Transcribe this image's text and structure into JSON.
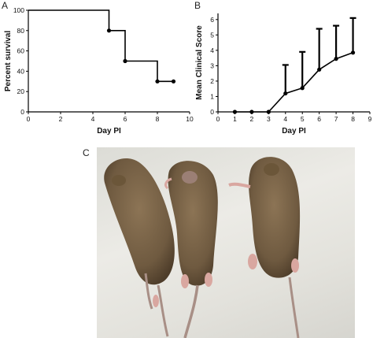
{
  "panels": {
    "a": "A",
    "b": "B",
    "c": "C"
  },
  "chart_data": [
    {
      "type": "line",
      "subtype": "step",
      "title": "",
      "xlabel": "Day PI",
      "ylabel": "Percent survival",
      "xlim": [
        0,
        10
      ],
      "ylim": [
        0,
        100
      ],
      "x_ticks": [
        0,
        2,
        4,
        6,
        8,
        10
      ],
      "y_ticks": [
        0,
        20,
        40,
        60,
        80,
        100
      ],
      "step_x": [
        0,
        5,
        5,
        6,
        6,
        8,
        8,
        9
      ],
      "step_y": [
        100,
        100,
        80,
        80,
        50,
        50,
        30,
        30
      ],
      "censored_x": [
        5,
        6,
        8,
        9
      ],
      "censored_y": [
        80,
        50,
        30,
        30
      ]
    },
    {
      "type": "line",
      "title": "",
      "xlabel": "Day PI",
      "ylabel": "Mean Clinical Score",
      "xlim": [
        0,
        9
      ],
      "ylim": [
        0,
        6.4
      ],
      "x_ticks": [
        0,
        1,
        2,
        3,
        4,
        5,
        6,
        7,
        8,
        9
      ],
      "y_ticks": [
        0,
        1,
        2,
        3,
        4,
        5,
        6
      ],
      "x": [
        1,
        2,
        3,
        4,
        5,
        6,
        7,
        8
      ],
      "y": [
        0,
        0,
        0,
        1.2,
        1.55,
        2.75,
        3.45,
        3.85
      ],
      "error_upper": [
        0,
        0,
        0,
        3.05,
        3.9,
        5.4,
        5.6,
        6.1
      ]
    }
  ],
  "photo": {
    "bg": "#e4e3dd",
    "fur": "#7a6448",
    "fur_dark": "#4e3d2a",
    "skin": "#d9a7a0",
    "tail": "#a88f86"
  }
}
